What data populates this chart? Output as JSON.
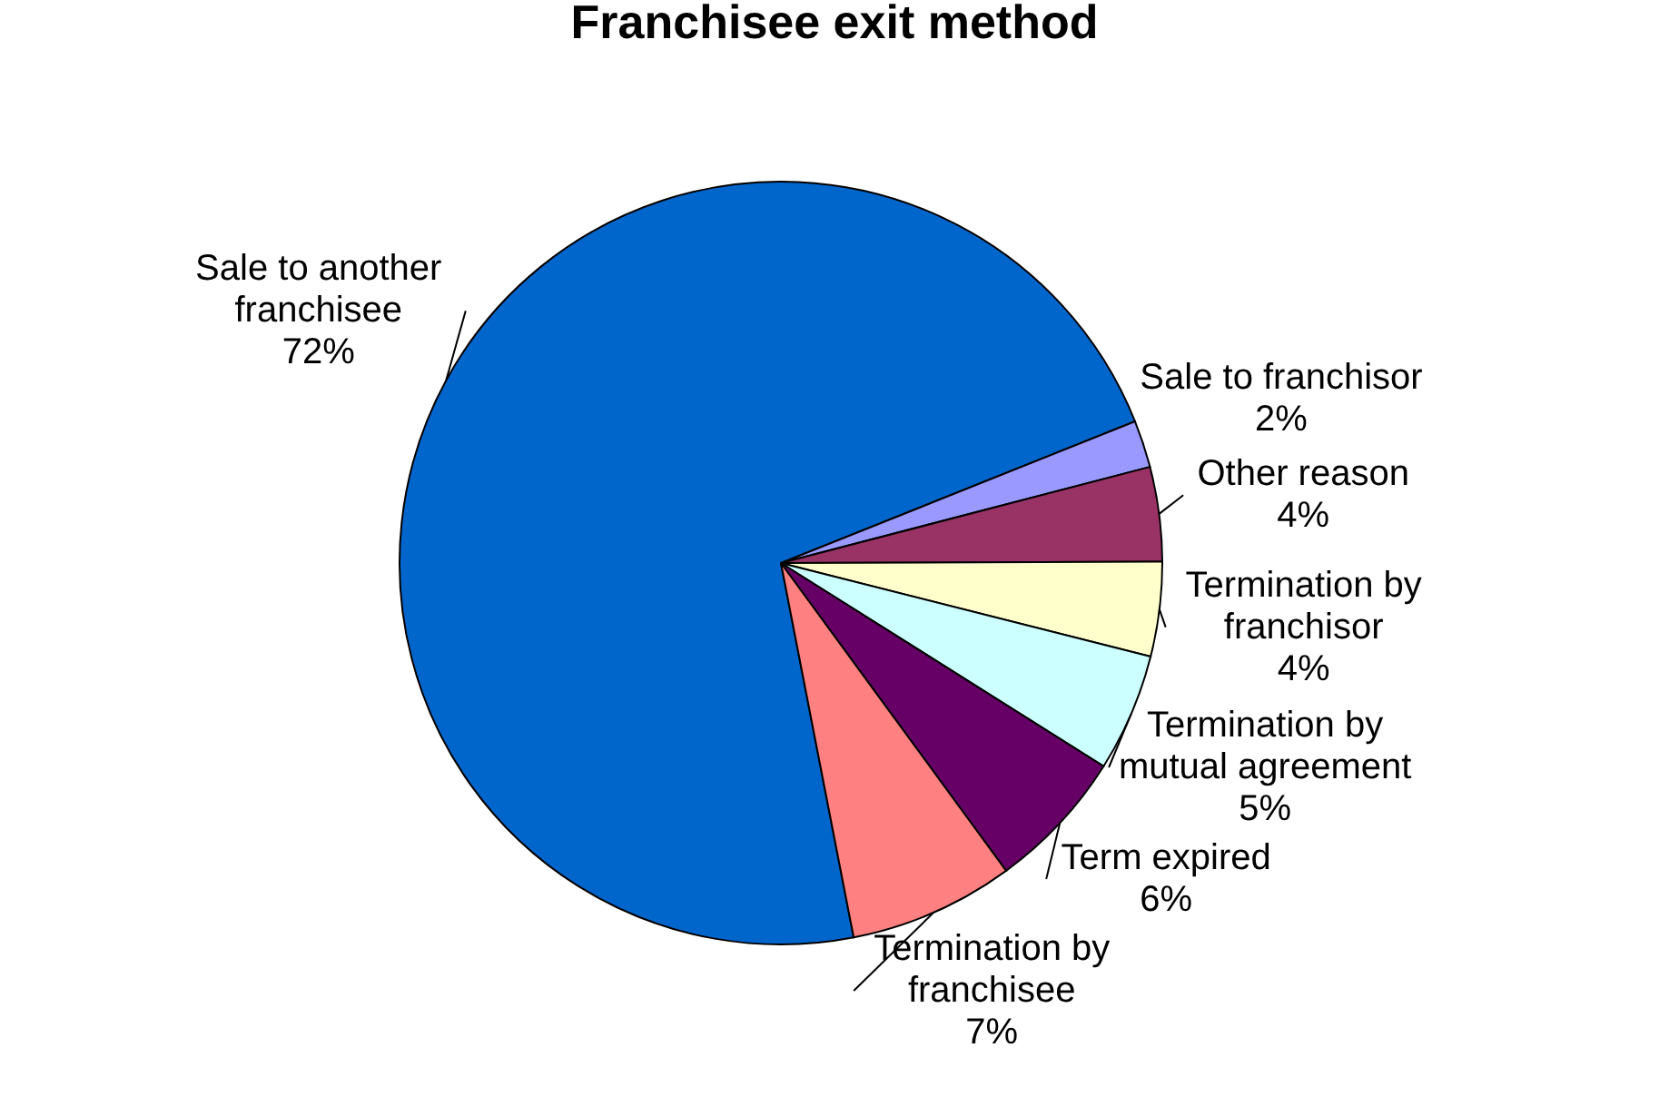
{
  "chart_data": {
    "type": "pie",
    "title": "Franchisee exit method",
    "categories": [
      "Sale to another franchisee",
      "Sale to franchisor",
      "Other reason",
      "Termination by franchisor",
      "Termination by mutual agreement",
      "Term expired",
      "Termination by franchisee"
    ],
    "values": [
      72,
      2,
      4,
      4,
      5,
      6,
      7
    ],
    "colors": [
      "#0066cc",
      "#9999ff",
      "#993366",
      "#ffffcc",
      "#ccffff",
      "#660066",
      "#ff8080"
    ],
    "value_labels": [
      "72%",
      "2%",
      "4%",
      "4%",
      "5%",
      "6%",
      "7%"
    ],
    "legend": false
  }
}
